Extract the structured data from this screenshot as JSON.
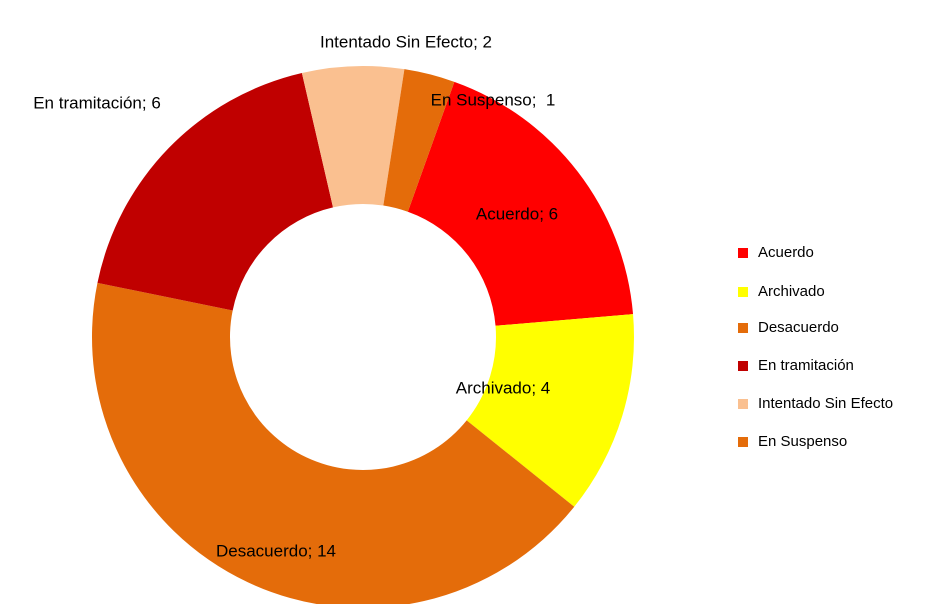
{
  "chart_data": {
    "type": "donut",
    "categories": [
      "Acuerdo",
      "Archivado",
      "Desacuerdo",
      "En tramitación",
      "Intentado Sin Efecto",
      "En Suspenso"
    ],
    "values": [
      6,
      4,
      14,
      6,
      2,
      1
    ],
    "value_labels": [
      "Acuerdo; 6",
      "Archivado; 4",
      "Desacuerdo; 14",
      "En tramitación; 6",
      "Intentado Sin Efecto; 2",
      "En Suspenso;  1"
    ],
    "colors": [
      "#ff0000",
      "#ffff00",
      "#e46c0a",
      "#c00000",
      "#fac090",
      "#e46c0a"
    ],
    "legend": "right"
  }
}
